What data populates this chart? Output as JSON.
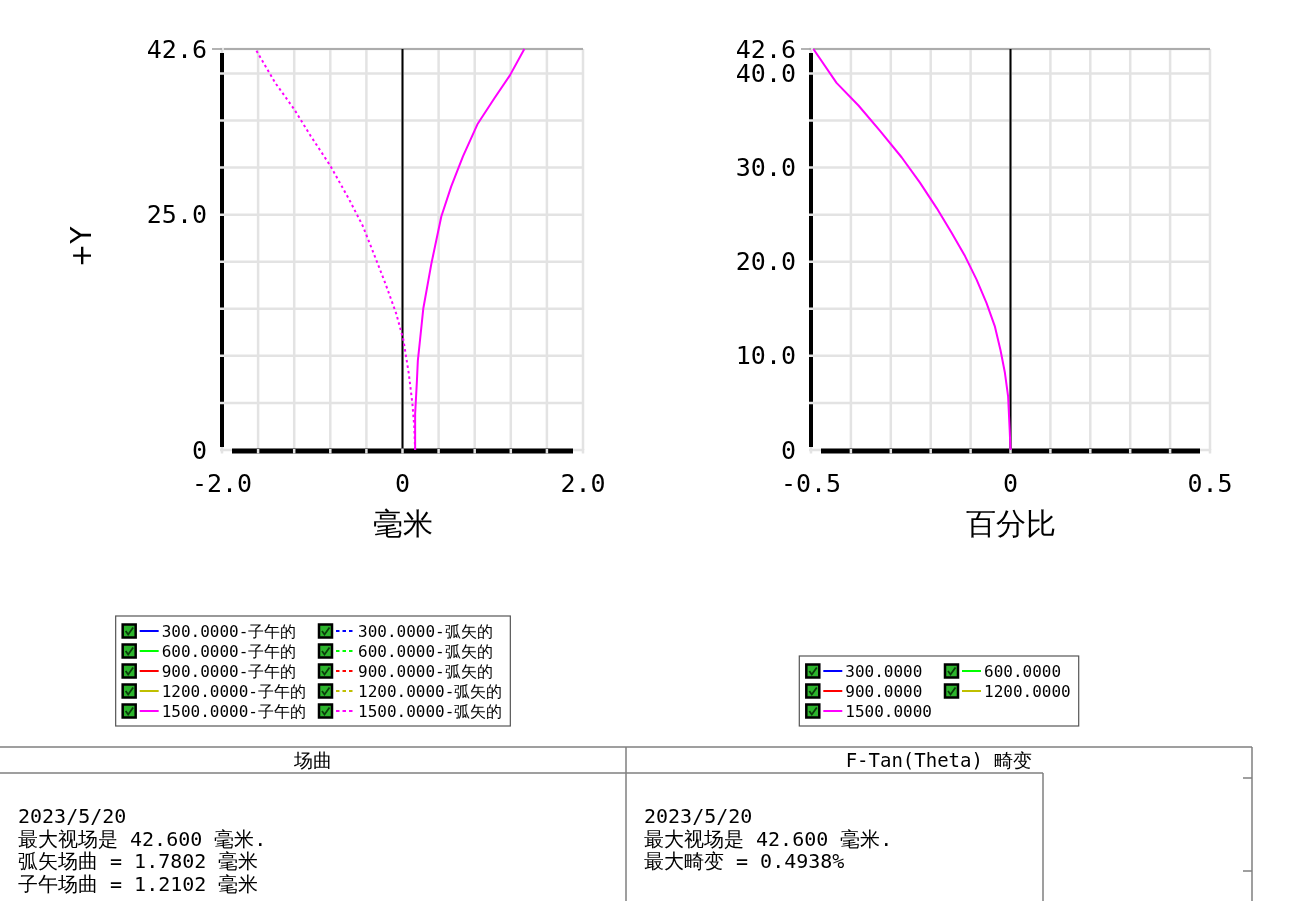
{
  "chart_data": [
    {
      "type": "line",
      "title": "场曲",
      "xlabel": "毫米",
      "ylabel": "+Y",
      "xlim": [
        -2,
        2
      ],
      "ylim": [
        0,
        42.6
      ],
      "xticks": [
        {
          "value": -2,
          "label": "-2.0"
        },
        {
          "value": -1.6,
          "label": null
        },
        {
          "value": -1.2,
          "label": null
        },
        {
          "value": -0.8,
          "label": null
        },
        {
          "value": -0.4,
          "label": null
        },
        0,
        {
          "value": 0.4,
          "label": null
        },
        {
          "value": 0.8,
          "label": null
        },
        {
          "value": 1.2,
          "label": null
        },
        {
          "value": 1.6,
          "label": null
        },
        {
          "value": 2,
          "label": "2.0"
        }
      ],
      "yticks": [
        {
          "value": 0,
          "label": "0"
        },
        {
          "value": 5,
          "label": null
        },
        {
          "value": 10,
          "label": null
        },
        {
          "value": 15,
          "label": null
        },
        {
          "value": 20,
          "label": null
        },
        {
          "value": 25,
          "label": "25.0"
        },
        {
          "value": 30,
          "label": null
        },
        {
          "value": 35,
          "label": null
        },
        {
          "value": 40,
          "label": null
        },
        {
          "value": 42.6,
          "label": "42.6"
        }
      ],
      "grid": true,
      "legend": "bottom",
      "ref_lines": [
        {
          "axis": "x",
          "value": 0,
          "color": "#000000"
        }
      ],
      "series": [
        {
          "name": "300.0000-子午的",
          "color": "#0000ff",
          "line_style": "solid"
        },
        {
          "name": "300.0000-弧矢的",
          "color": "#0000ff",
          "line_style": "dotted"
        },
        {
          "name": "600.0000-子午的",
          "color": "#00ff00",
          "line_style": "solid"
        },
        {
          "name": "600.0000-弧矢的",
          "color": "#00ff00",
          "line_style": "dotted"
        },
        {
          "name": "900.0000-子午的",
          "color": "#ff0000",
          "line_style": "solid"
        },
        {
          "name": "900.0000-弧矢的",
          "color": "#ff0000",
          "line_style": "dotted"
        },
        {
          "name": "1200.0000-子午的",
          "color": "#bfbf00",
          "line_style": "solid"
        },
        {
          "name": "1200.0000-弧矢的",
          "color": "#bfbf00",
          "line_style": "dotted"
        },
        {
          "name": "1500.0000-子午的",
          "color": "#ff00ff",
          "line_style": "solid",
          "x": [
            0.14,
            0.14,
            0.15,
            0.16,
            0.17,
            0.19,
            0.23,
            0.32,
            0.43,
            0.54,
            0.67,
            0.83,
            1.02,
            1.19,
            1.35
          ],
          "values": [
            0,
            3.8,
            5.6,
            7.4,
            9.5,
            11.3,
            15.0,
            19.8,
            24.8,
            28.0,
            31.2,
            34.6,
            37.4,
            39.8,
            42.6
          ]
        },
        {
          "name": "1500.0000-弧矢的",
          "color": "#ff00ff",
          "line_style": "dotted",
          "x": [
            0.14,
            0.13,
            0.11,
            0.07,
            0.01,
            -0.07,
            -0.19,
            -0.32,
            -0.44,
            -0.59,
            -0.8,
            -1.02,
            -1.2,
            -1.41,
            -1.63
          ],
          "values": [
            0,
            2.5,
            4.9,
            8.1,
            11.7,
            14.5,
            17.7,
            20.9,
            23.8,
            26.6,
            30.2,
            33.4,
            36.2,
            39.0,
            42.6
          ]
        }
      ],
      "annotations": [
        "2023/5/20",
        "最大视场是 42.600 毫米.",
        "弧矢场曲 = 1.7802 毫米",
        "子午场曲 = 1.2102 毫米"
      ]
    },
    {
      "type": "line",
      "title": "F-Tan(Theta) 畸变",
      "xlabel": "百分比",
      "xlim": [
        -0.5,
        0.5
      ],
      "ylim": [
        0,
        42.6
      ],
      "xticks": [
        -0.5,
        {
          "value": -0.4,
          "label": null
        },
        {
          "value": -0.3,
          "label": null
        },
        {
          "value": -0.2,
          "label": null
        },
        {
          "value": -0.1,
          "label": null
        },
        0,
        {
          "value": 0.1,
          "label": null
        },
        {
          "value": 0.2,
          "label": null
        },
        {
          "value": 0.3,
          "label": null
        },
        {
          "value": 0.4,
          "label": null
        },
        0.5
      ],
      "yticks": [
        {
          "value": 0,
          "label": "0"
        },
        {
          "value": 5,
          "label": null
        },
        {
          "value": 10,
          "label": "10.0"
        },
        {
          "value": 15,
          "label": null
        },
        {
          "value": 20,
          "label": "20.0"
        },
        {
          "value": 25,
          "label": null
        },
        {
          "value": 30,
          "label": "30.0"
        },
        {
          "value": 35,
          "label": null
        },
        {
          "value": 40,
          "label": "40.0"
        },
        {
          "value": 42.6,
          "label": "42.6"
        }
      ],
      "grid": true,
      "legend": "bottom",
      "ref_lines": [
        {
          "axis": "x",
          "value": 0,
          "color": "#000000"
        }
      ],
      "series": [
        {
          "name": "300.0000",
          "color": "#0000ff",
          "line_style": "solid"
        },
        {
          "name": "600.0000",
          "color": "#00ff00",
          "line_style": "solid"
        },
        {
          "name": "900.0000",
          "color": "#ff0000",
          "line_style": "solid"
        },
        {
          "name": "1200.0000",
          "color": "#bfbf00",
          "line_style": "solid"
        },
        {
          "name": "1500.0000",
          "color": "#ff00ff",
          "line_style": "solid",
          "x": [
            0,
            -0.002,
            -0.006,
            -0.014,
            -0.025,
            -0.039,
            -0.06,
            -0.085,
            -0.114,
            -0.148,
            -0.185,
            -0.227,
            -0.273,
            -0.327,
            -0.381,
            -0.436,
            -0.494
          ],
          "values": [
            0,
            2.1,
            5.7,
            8.2,
            10.6,
            13.1,
            15.6,
            18.1,
            20.6,
            23.1,
            25.7,
            28.4,
            31.1,
            33.9,
            36.6,
            39.0,
            42.6
          ]
        }
      ],
      "annotations": [
        "2023/5/20",
        "最大视场是 42.600 毫米.",
        "最大畸变 = 0.4938%"
      ]
    }
  ]
}
